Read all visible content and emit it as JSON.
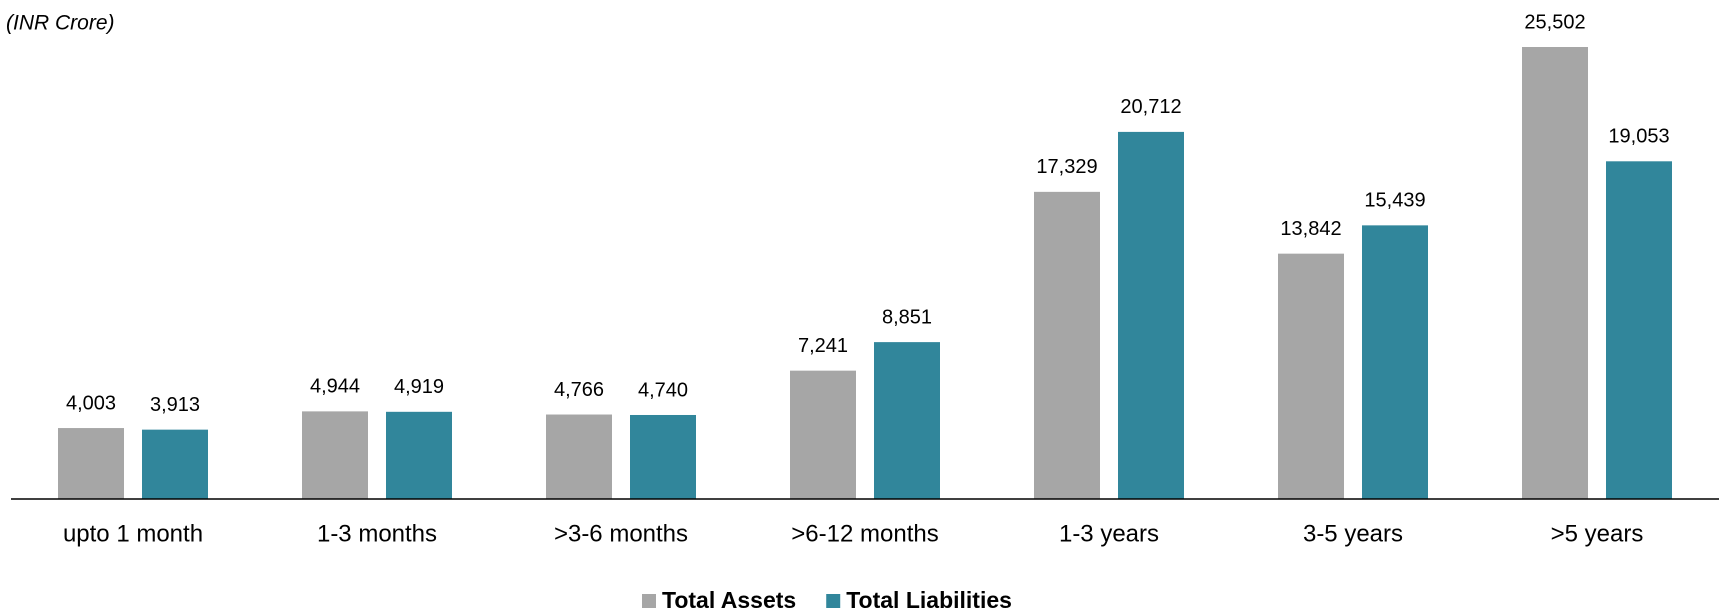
{
  "chart_data": {
    "type": "bar",
    "subtitle": "(INR Crore)",
    "categories": [
      "upto 1 month",
      "1-3 months",
      ">3-6 months",
      ">6-12 months",
      "1-3 years",
      "3-5 years",
      ">5 years"
    ],
    "series": [
      {
        "name": "Total Assets",
        "color": "#a6a6a6",
        "values": [
          4003,
          4944,
          4766,
          7241,
          17329,
          13842,
          25502
        ],
        "value_labels": [
          "4,003",
          "4,944",
          "4,766",
          "7,241",
          "17,329",
          "13,842",
          "25,502"
        ]
      },
      {
        "name": "Total Liabilities",
        "color": "#31869b",
        "values": [
          3913,
          4919,
          4740,
          8851,
          20712,
          15439,
          19053
        ],
        "value_labels": [
          "3,913",
          "4,919",
          "4,740",
          "8,851",
          "20,712",
          "15,439",
          "19,053"
        ]
      }
    ],
    "legend": "bottom"
  }
}
